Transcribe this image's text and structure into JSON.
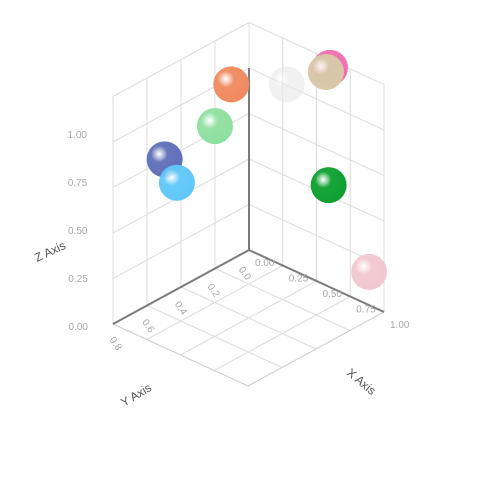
{
  "chart_data": {
    "type": "scatter3d",
    "x_axis": {
      "label": "X Axis",
      "ticks": [
        "0.00",
        "0.25",
        "0.50",
        "0.75",
        "1.00"
      ]
    },
    "y_axis": {
      "label": "Y Axis",
      "ticks": [
        "0.0",
        "0.2",
        "0.4",
        "0.6",
        "0.8"
      ]
    },
    "z_axis": {
      "label": "Z Axis",
      "ticks": [
        "0.00",
        "0.25",
        "0.50",
        "0.75",
        "1.00"
      ]
    },
    "grid": true,
    "points": [
      {
        "x": 0.05,
        "y": 0.18,
        "z": 1.0,
        "color": "#f08a60"
      },
      {
        "x": 0.3,
        "y": 0.02,
        "z": 1.02,
        "color": "#e7e7e7"
      },
      {
        "x": 0.58,
        "y": 0.01,
        "z": 1.18,
        "color": "#d8c8a8"
      },
      {
        "x": 0.62,
        "y": 0.02,
        "z": 1.22,
        "color": "#f070b0"
      },
      {
        "x": 0.05,
        "y": 0.3,
        "z": 0.82,
        "color": "#8fe0a0"
      },
      {
        "x": 0.62,
        "y": 0.03,
        "z": 0.58,
        "color": "#0ea030"
      },
      {
        "x": 0.0,
        "y": 0.62,
        "z": 0.75,
        "color": "#6070b8"
      },
      {
        "x": 0.02,
        "y": 0.55,
        "z": 0.6,
        "color": "#60c8f8"
      },
      {
        "x": 0.98,
        "y": 0.09,
        "z": 0.25,
        "color": "#f2c8d0"
      }
    ]
  }
}
